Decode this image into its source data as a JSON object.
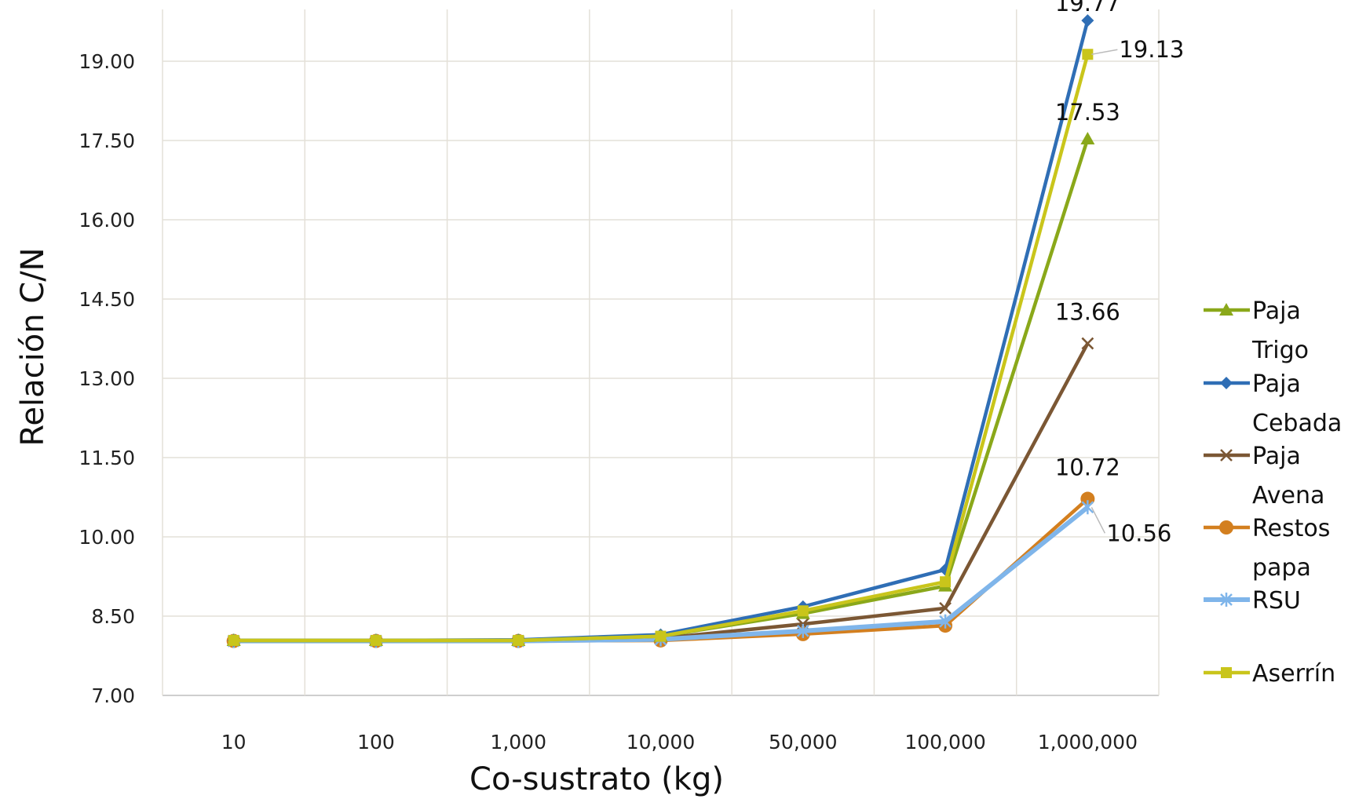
{
  "chart_data": {
    "type": "line",
    "xlabel": "Co-sustrato (kg)",
    "ylabel": "Relación C/N",
    "categories": [
      "10",
      "100",
      "1,000",
      "10,000",
      "50,000",
      "100,000",
      "1,000,000"
    ],
    "y_ticks": [
      "7.00",
      "8.50",
      "10.00",
      "11.50",
      "13.00",
      "14.50",
      "16.00",
      "17.50",
      "19.00"
    ],
    "ylim": [
      7.0,
      20.0
    ],
    "grid": true,
    "legend_position": "right",
    "series": [
      {
        "name": "Paja Trigo",
        "name_lines": [
          "Paja",
          "Trigo"
        ],
        "color": "#8aa81a",
        "marker": "triangle",
        "values": [
          8.04,
          8.04,
          8.04,
          8.12,
          8.55,
          9.07,
          17.53
        ],
        "last_label": "17.53"
      },
      {
        "name": "Paja Cebada",
        "name_lines": [
          "Paja",
          "Cebada"
        ],
        "color": "#2f6eb5",
        "marker": "diamond",
        "values": [
          8.04,
          8.04,
          8.05,
          8.15,
          8.68,
          9.38,
          19.77
        ],
        "last_label": "19.77"
      },
      {
        "name": "Paja Avena",
        "name_lines": [
          "Paja",
          "Avena"
        ],
        "color": "#7b5734",
        "marker": "x",
        "values": [
          8.03,
          8.03,
          8.03,
          8.08,
          8.35,
          8.65,
          13.66
        ],
        "last_label": "13.66"
      },
      {
        "name": "Restos papa",
        "name_lines": [
          "Restos",
          "papa"
        ],
        "color": "#d37f1f",
        "marker": "circle",
        "values": [
          8.03,
          8.03,
          8.03,
          8.04,
          8.16,
          8.32,
          10.72
        ],
        "last_label": "10.72"
      },
      {
        "name": "RSU",
        "name_lines": [
          "RSU"
        ],
        "color": "#7fb5ea",
        "marker": "star",
        "values": [
          8.03,
          8.03,
          8.03,
          8.06,
          8.22,
          8.4,
          10.56
        ],
        "last_label": "10.56"
      },
      {
        "name": "Aserrín",
        "name_lines": [
          "Aserrín"
        ],
        "color": "#c9c51b",
        "marker": "square",
        "values": [
          8.04,
          8.04,
          8.04,
          8.12,
          8.6,
          9.15,
          19.13
        ],
        "last_label": "19.13"
      }
    ]
  }
}
